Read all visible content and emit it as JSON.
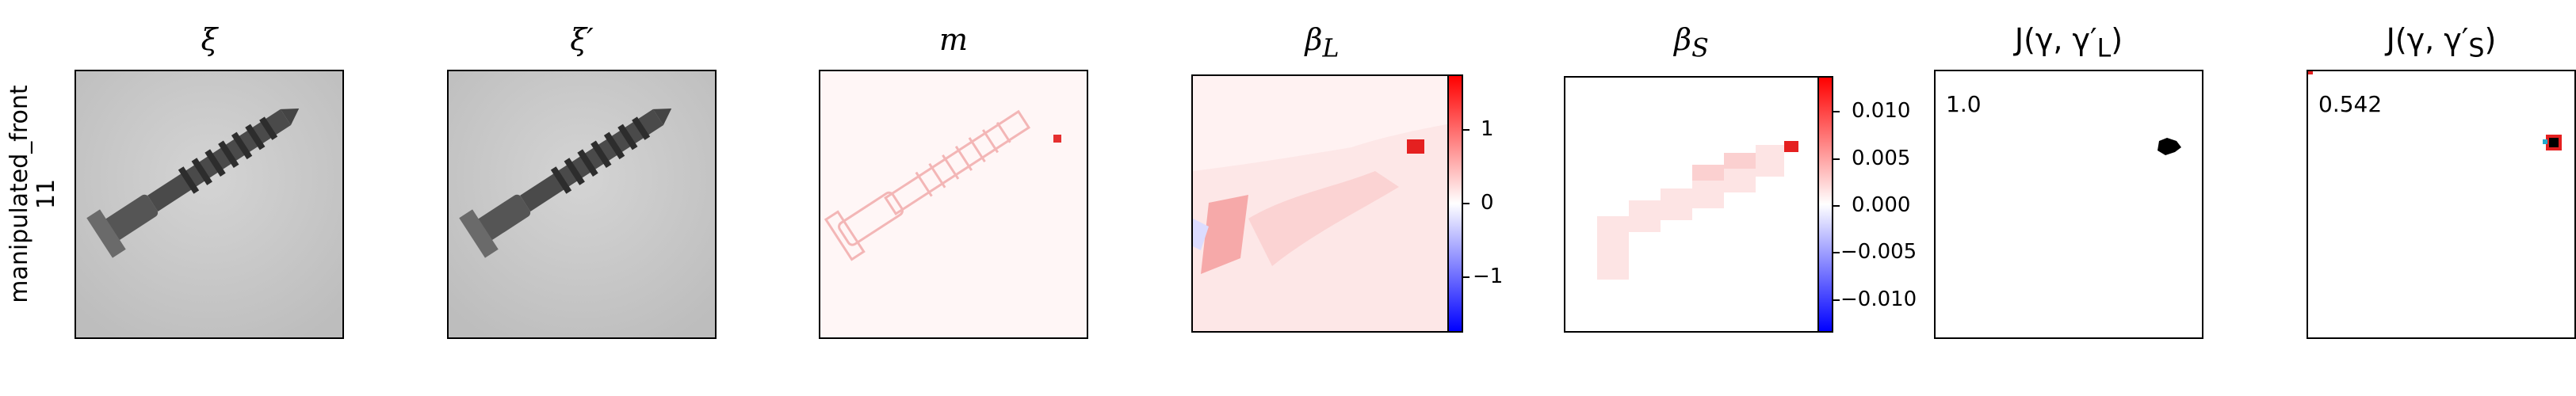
{
  "row_label": {
    "line1": "manipulated_front",
    "line2": "11"
  },
  "panels": [
    {
      "title_html": "ξ"
    },
    {
      "title_html": "ξ′"
    },
    {
      "title_html": "m"
    },
    {
      "title_html": "β<sub>L</sub>"
    },
    {
      "title_html": "β<sub>S</sub>"
    },
    {
      "title_html": "J(γ, γ′<sub>L</sub>)"
    },
    {
      "title_html": "J(γ, γ′<sub>S</sub>)"
    }
  ],
  "colorbar_L": {
    "ticks": [
      "1",
      "0",
      "−1"
    ]
  },
  "colorbar_S": {
    "ticks": [
      "0.010",
      "0.005",
      "0.000",
      "−0.005",
      "−0.010"
    ]
  },
  "scores": {
    "jaccard_L": "1.0",
    "jaccard_S": "0.542"
  },
  "colors": {
    "positive": "#ff0000",
    "negative": "#0000ff",
    "neutral": "#ffffff"
  }
}
